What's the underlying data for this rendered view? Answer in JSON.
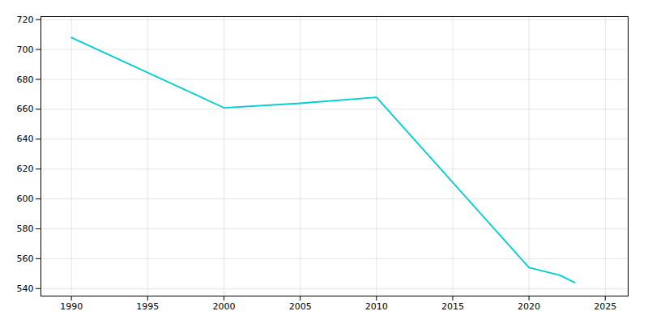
{
  "chart_data": {
    "type": "line",
    "x": [
      1990,
      2000,
      2005,
      2010,
      2020,
      2022,
      2023
    ],
    "values": [
      708,
      661,
      664,
      668,
      554,
      549,
      544
    ],
    "color": "#00CED1",
    "xlim": [
      1988,
      2026.5
    ],
    "ylim": [
      535,
      722
    ],
    "xticks": [
      1990,
      1995,
      2000,
      2005,
      2010,
      2015,
      2020,
      2025
    ],
    "yticks": [
      540,
      560,
      580,
      600,
      620,
      640,
      660,
      680,
      700,
      720
    ],
    "grid": true
  }
}
